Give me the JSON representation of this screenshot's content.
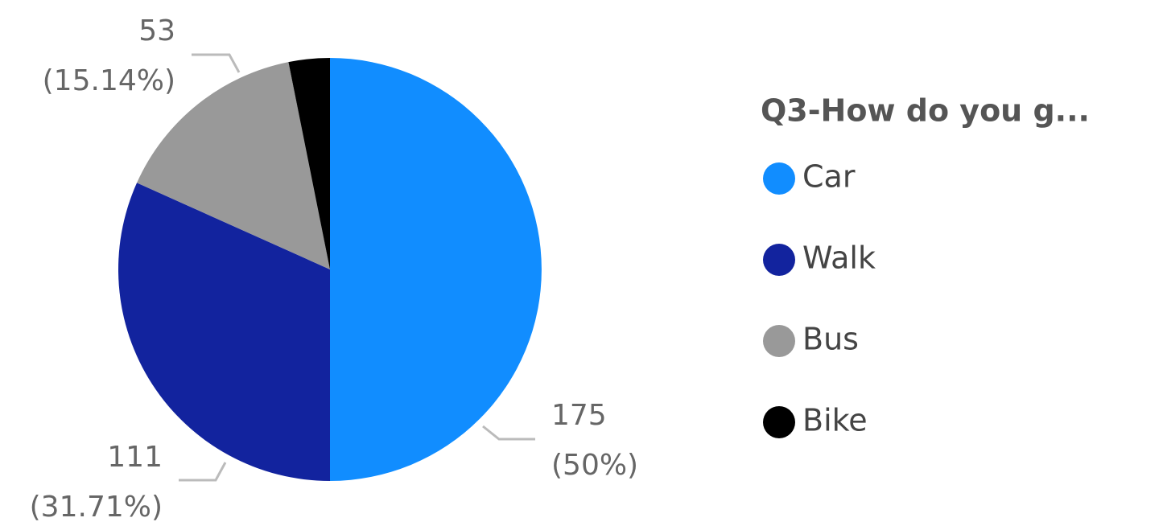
{
  "chart_data": {
    "type": "pie",
    "legend_title": "Q3-How do you g...",
    "categories": [
      "Car",
      "Walk",
      "Bus",
      "Bike"
    ],
    "values": [
      175,
      111,
      53,
      11
    ],
    "value_labels": [
      "175",
      "111",
      "53",
      null
    ],
    "percent_labels": [
      "(50%)",
      "(31.71%)",
      "(15.14%)",
      null
    ],
    "colors": [
      "#118dff",
      "#12239e",
      "#999999",
      "#000000"
    ],
    "legend": "right"
  }
}
